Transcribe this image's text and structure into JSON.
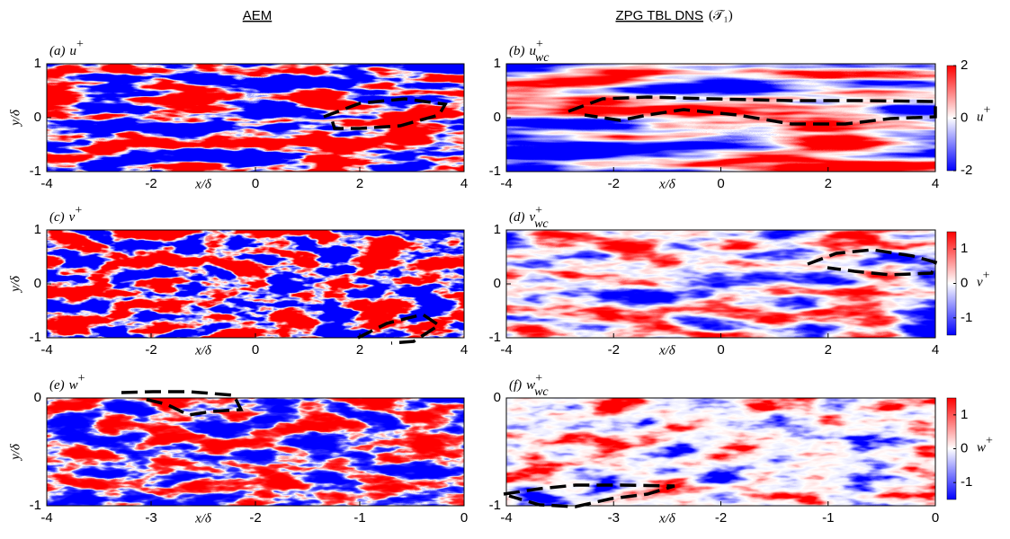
{
  "column_titles": [
    {
      "text": "AEM"
    },
    {
      "text": "ZPG TBL DNS",
      "suffix": "(𝒯₁)"
    }
  ],
  "panels": [
    {
      "letter": "(a)",
      "symbol": "u",
      "sup": "+",
      "sub": "",
      "xlim": [
        -4,
        4
      ],
      "xticks": [
        -4,
        -2,
        0,
        2,
        4
      ],
      "ylim": [
        -1,
        1
      ],
      "yticks": [
        -1,
        0,
        1
      ],
      "xlabel": "x/δ",
      "ylabel": "y/δ"
    },
    {
      "letter": "(b)",
      "symbol": "u",
      "sup": "+",
      "sub": "wc",
      "xlim": [
        -4,
        4
      ],
      "xticks": [
        -4,
        -2,
        0,
        2,
        4
      ],
      "ylim": [
        -1,
        1
      ],
      "yticks": [
        -1,
        0,
        1
      ],
      "xlabel": "x/δ"
    },
    {
      "letter": "(c)",
      "symbol": "v",
      "sup": "+",
      "sub": "",
      "xlim": [
        -4,
        4
      ],
      "xticks": [
        -4,
        -2,
        0,
        2,
        4
      ],
      "ylim": [
        -1,
        1
      ],
      "yticks": [
        -1,
        0,
        1
      ],
      "xlabel": "x/δ",
      "ylabel": "y/δ"
    },
    {
      "letter": "(d)",
      "symbol": "v",
      "sup": "+",
      "sub": "wc",
      "xlim": [
        -4,
        4
      ],
      "xticks": [
        -4,
        -2,
        0,
        2,
        4
      ],
      "ylim": [
        -1,
        1
      ],
      "yticks": [
        -1,
        0,
        1
      ],
      "xlabel": "x/δ"
    },
    {
      "letter": "(e)",
      "symbol": "w",
      "sup": "+",
      "sub": "",
      "xlim": [
        -4,
        0
      ],
      "xticks": [
        -4,
        -3,
        -2,
        -1,
        0
      ],
      "ylim": [
        -1,
        0
      ],
      "yticks": [
        -1,
        0
      ],
      "xlabel": "x/δ",
      "ylabel": "y/δ"
    },
    {
      "letter": "(f)",
      "symbol": "w",
      "sup": "+",
      "sub": "wc",
      "xlim": [
        -4,
        0
      ],
      "xticks": [
        -4,
        -3,
        -2,
        -1,
        0
      ],
      "ylim": [
        -1,
        0
      ],
      "yticks": [
        -1,
        0
      ],
      "xlabel": "x/δ"
    }
  ],
  "colorbars": [
    {
      "symbol": "u",
      "sup": "+",
      "clim": [
        -2,
        2
      ],
      "ticks": [
        -2,
        0,
        2
      ]
    },
    {
      "symbol": "v",
      "sup": "+",
      "clim": [
        -1.5,
        1.5
      ],
      "ticks": [
        -1,
        0,
        1
      ]
    },
    {
      "symbol": "w",
      "sup": "+",
      "clim": [
        -1.5,
        1.5
      ],
      "ticks": [
        -1,
        0,
        1
      ]
    }
  ]
}
